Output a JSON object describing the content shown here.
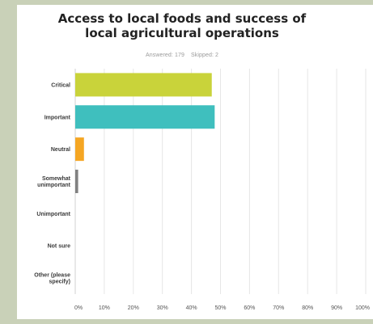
{
  "header": {
    "title_line1": "Access to local foods and success of",
    "title_line2": "local agricultural operations",
    "answered": "Answered: 179",
    "skipped": "Skipped: 2"
  },
  "chart_data": {
    "type": "bar",
    "orientation": "horizontal",
    "title": "Access to local foods and success of local agricultural operations",
    "categories": [
      [
        "Critical"
      ],
      [
        "Important"
      ],
      [
        "Neutral"
      ],
      [
        "Somewhat",
        "unimportant"
      ],
      [
        "Unimportant"
      ],
      [
        "Not sure"
      ],
      [
        "Other (please",
        "specify)"
      ]
    ],
    "values": [
      47,
      48,
      3,
      1,
      0,
      0,
      0
    ],
    "colors": [
      "#c9d33a",
      "#3fbfbe",
      "#f5a623",
      "#808080",
      "#c9d33a",
      "#3fbfbe",
      "#f5a623"
    ],
    "xlim": [
      0,
      100
    ],
    "xticks": [
      "0%",
      "10%",
      "20%",
      "30%",
      "40%",
      "50%",
      "60%",
      "70%",
      "80%",
      "90%",
      "100%"
    ],
    "grid": true
  }
}
